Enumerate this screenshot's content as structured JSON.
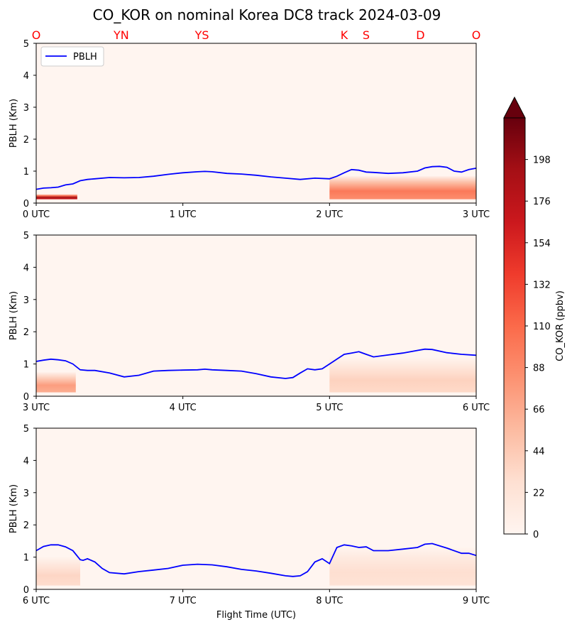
{
  "chart_data": {
    "type": "heatmap",
    "title": "CO_KOR on nominal Korea DC8 track 2024-03-09",
    "xlabel": "Flight Time (UTC)",
    "ylabel": "PBLH (Km)",
    "ylim": [
      0,
      5
    ],
    "yticks": [
      "0",
      "1",
      "2",
      "3",
      "4",
      "5"
    ],
    "legend": {
      "label": "PBLH",
      "placement": "upper-left"
    },
    "line_color": "#0000ff",
    "site_color": "#ff0000",
    "sites": [
      {
        "label": "O",
        "x": 0.0
      },
      {
        "label": "YN",
        "x": 0.58
      },
      {
        "label": "YS",
        "x": 1.13
      },
      {
        "label": "K",
        "x": 2.1
      },
      {
        "label": "S",
        "x": 2.25
      },
      {
        "label": "D",
        "x": 2.62
      },
      {
        "label": "O",
        "x": 3.0
      }
    ],
    "colorbar": {
      "label": "CO_KOR (ppbv)",
      "min": 0,
      "max": 220,
      "ticks": [
        "0",
        "22",
        "44",
        "66",
        "88",
        "110",
        "132",
        "154",
        "176",
        "198"
      ],
      "extend": "max",
      "colors": [
        "#fff5f0",
        "#fee0d2",
        "#fcbba1",
        "#fc9272",
        "#fb6a4a",
        "#ef3b2c",
        "#cb181d",
        "#a50f15",
        "#67000d"
      ]
    },
    "panels": [
      {
        "xlim": [
          0,
          3
        ],
        "xticks": [
          "0 UTC",
          "1 UTC",
          "2 UTC",
          "3 UTC"
        ],
        "pblh": {
          "x": [
            0,
            0.05,
            0.1,
            0.15,
            0.2,
            0.25,
            0.3,
            0.35,
            0.4,
            0.5,
            0.6,
            0.7,
            0.8,
            0.9,
            1.0,
            1.1,
            1.15,
            1.2,
            1.3,
            1.4,
            1.5,
            1.6,
            1.7,
            1.8,
            1.9,
            2.0,
            2.05,
            2.1,
            2.15,
            2.2,
            2.25,
            2.3,
            2.4,
            2.5,
            2.6,
            2.65,
            2.7,
            2.75,
            2.8,
            2.85,
            2.9,
            2.95,
            3.0
          ],
          "y": [
            0.43,
            0.47,
            0.48,
            0.5,
            0.57,
            0.6,
            0.7,
            0.74,
            0.76,
            0.8,
            0.79,
            0.8,
            0.84,
            0.9,
            0.95,
            0.98,
            0.99,
            0.98,
            0.93,
            0.91,
            0.87,
            0.82,
            0.78,
            0.74,
            0.78,
            0.76,
            0.84,
            0.95,
            1.05,
            1.03,
            0.97,
            0.96,
            0.93,
            0.95,
            1.0,
            1.1,
            1.14,
            1.15,
            1.12,
            1.0,
            0.97,
            1.05,
            1.09
          ]
        },
        "co_layers": [
          {
            "x_start": 0.0,
            "x_end": 0.28,
            "top": 0.28,
            "peak": 190
          },
          {
            "x_start": 2.0,
            "x_end": 3.0,
            "top": 0.85,
            "peak": 100
          }
        ]
      },
      {
        "xlim": [
          3,
          6
        ],
        "xticks": [
          "3 UTC",
          "4 UTC",
          "5 UTC",
          "6 UTC"
        ],
        "pblh": {
          "x": [
            3.0,
            3.05,
            3.1,
            3.15,
            3.2,
            3.25,
            3.3,
            3.35,
            3.4,
            3.5,
            3.6,
            3.7,
            3.8,
            3.9,
            4.0,
            4.1,
            4.15,
            4.2,
            4.3,
            4.4,
            4.5,
            4.6,
            4.7,
            4.75,
            4.8,
            4.85,
            4.9,
            4.95,
            5.0,
            5.05,
            5.1,
            5.15,
            5.2,
            5.25,
            5.3,
            5.4,
            5.5,
            5.6,
            5.65,
            5.7,
            5.8,
            5.9,
            6.0
          ],
          "y": [
            1.08,
            1.12,
            1.15,
            1.13,
            1.1,
            1.0,
            0.82,
            0.8,
            0.8,
            0.72,
            0.6,
            0.65,
            0.78,
            0.8,
            0.81,
            0.82,
            0.84,
            0.82,
            0.8,
            0.78,
            0.7,
            0.6,
            0.55,
            0.58,
            0.72,
            0.85,
            0.82,
            0.85,
            1.0,
            1.15,
            1.3,
            1.34,
            1.38,
            1.3,
            1.22,
            1.28,
            1.34,
            1.42,
            1.46,
            1.45,
            1.35,
            1.3,
            1.27
          ]
        },
        "co_layers": [
          {
            "x_start": 3.0,
            "x_end": 3.27,
            "top": 0.75,
            "peak": 75
          },
          {
            "x_start": 5.0,
            "x_end": 6.0,
            "top": 1.2,
            "peak": 38
          }
        ]
      },
      {
        "xlim": [
          6,
          9
        ],
        "xticks": [
          "6 UTC",
          "7 UTC",
          "8 UTC",
          "9 UTC"
        ],
        "pblh": {
          "x": [
            6.0,
            6.05,
            6.1,
            6.15,
            6.2,
            6.25,
            6.3,
            6.32,
            6.35,
            6.4,
            6.45,
            6.5,
            6.6,
            6.7,
            6.8,
            6.9,
            7.0,
            7.1,
            7.2,
            7.3,
            7.4,
            7.5,
            7.6,
            7.7,
            7.75,
            7.8,
            7.85,
            7.9,
            7.95,
            8.0,
            8.05,
            8.1,
            8.15,
            8.2,
            8.25,
            8.3,
            8.4,
            8.5,
            8.6,
            8.65,
            8.7,
            8.8,
            8.9,
            8.95,
            9.0
          ],
          "y": [
            1.2,
            1.33,
            1.38,
            1.38,
            1.32,
            1.2,
            0.92,
            0.9,
            0.95,
            0.85,
            0.65,
            0.52,
            0.48,
            0.55,
            0.6,
            0.65,
            0.75,
            0.78,
            0.76,
            0.7,
            0.62,
            0.57,
            0.5,
            0.42,
            0.4,
            0.42,
            0.55,
            0.85,
            0.95,
            0.8,
            1.3,
            1.38,
            1.35,
            1.3,
            1.32,
            1.2,
            1.2,
            1.25,
            1.3,
            1.4,
            1.42,
            1.28,
            1.12,
            1.12,
            1.05
          ]
        },
        "co_layers": [
          {
            "x_start": 6.0,
            "x_end": 6.3,
            "top": 1.0,
            "peak": 35
          },
          {
            "x_start": 8.0,
            "x_end": 9.0,
            "top": 1.3,
            "peak": 28
          }
        ]
      }
    ]
  }
}
